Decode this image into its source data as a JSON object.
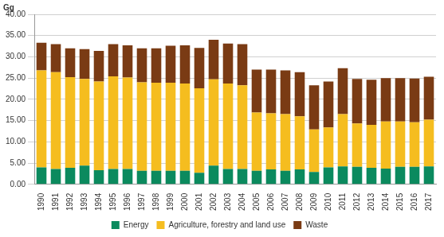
{
  "chart_data": {
    "type": "bar",
    "stacked": true,
    "grid": true,
    "legend": "bottom",
    "y_label": "Gg",
    "categories": [
      "1990",
      "1991",
      "1992",
      "1993",
      "1994",
      "1995",
      "1996",
      "1997",
      "1998",
      "1999",
      "2000",
      "2001",
      "2002",
      "2003",
      "2004",
      "2005",
      "2006",
      "2007",
      "2008",
      "2009",
      "2010",
      "2011",
      "2012",
      "2013",
      "2014",
      "2015",
      "2016",
      "2017"
    ],
    "series": [
      {
        "name": "Energy",
        "color": "#0b8a5e",
        "values": [
          4.0,
          3.6,
          3.9,
          4.4,
          3.3,
          3.6,
          3.6,
          3.2,
          3.2,
          3.2,
          3.2,
          2.7,
          4.4,
          3.6,
          3.6,
          3.2,
          3.5,
          3.2,
          3.5,
          2.9,
          4.0,
          4.2,
          4.1,
          3.9,
          3.7,
          4.1,
          4.1,
          4.2
        ]
      },
      {
        "name": "Agriculture, forestry and land use",
        "color": "#f5bd1f",
        "values": [
          22.8,
          22.8,
          21.3,
          20.4,
          20.9,
          21.8,
          21.5,
          20.8,
          20.7,
          20.7,
          20.5,
          19.9,
          20.3,
          20.1,
          19.7,
          13.7,
          13.2,
          13.3,
          12.5,
          10.0,
          9.4,
          12.3,
          10.2,
          10.1,
          11.1,
          10.7,
          10.5,
          11.0
        ]
      },
      {
        "name": "Waste",
        "color": "#7a3b14",
        "values": [
          6.5,
          6.6,
          6.8,
          7.0,
          7.2,
          7.6,
          7.6,
          8.0,
          8.1,
          8.7,
          9.0,
          9.5,
          9.3,
          9.4,
          9.7,
          10.1,
          10.3,
          10.3,
          10.4,
          10.4,
          10.8,
          10.8,
          10.5,
          10.6,
          10.2,
          10.2,
          10.3,
          10.1
        ]
      }
    ],
    "ylim": [
      0,
      40
    ],
    "yticks": [
      {
        "value": 0,
        "label": "0.00"
      },
      {
        "value": 5,
        "label": "5.00"
      },
      {
        "value": 10,
        "label": "10.00"
      },
      {
        "value": 15,
        "label": "15.00"
      },
      {
        "value": 20,
        "label": "20.00"
      },
      {
        "value": 25,
        "label": "25.00"
      },
      {
        "value": 30,
        "label": "30.00"
      },
      {
        "value": 35,
        "label": "35.00"
      },
      {
        "value": 40,
        "label": "40.00"
      }
    ]
  }
}
